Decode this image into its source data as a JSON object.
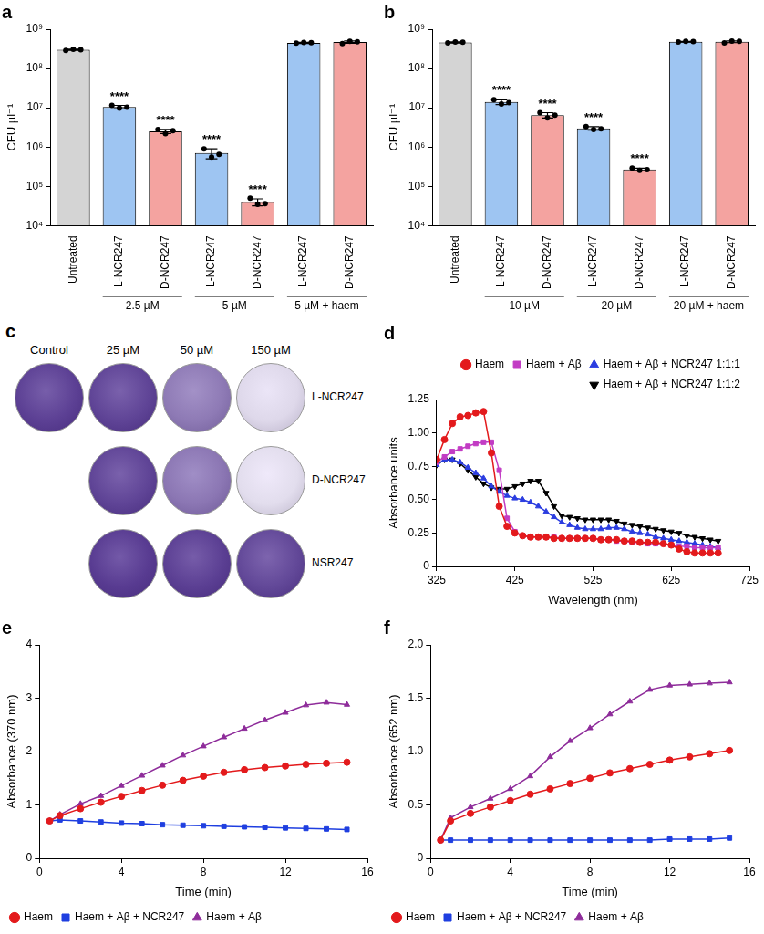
{
  "chart_data": [
    {
      "type": "bar",
      "title": "a",
      "categories": [
        "Untreated",
        "L-NCR247",
        "D-NCR247",
        "L-NCR247",
        "D-NCR247",
        "L-NCR247",
        "D-NCR247"
      ],
      "groups": [
        null,
        "2.5 µM",
        "2.5 µM",
        "5 µM",
        "5 µM",
        "5 µM + haem",
        "5 µM + haem"
      ],
      "values": [
        300000000,
        10500000,
        2500000,
        700000,
        40000,
        450000000,
        470000000
      ],
      "errors": [
        10000000,
        1000000,
        300000,
        200000,
        8000,
        15000000,
        30000000
      ],
      "replicates": [
        [
          290000000,
          310000000,
          300000000
        ],
        [
          11500000,
          9800000,
          10300000
        ],
        [
          2800000,
          2200000,
          2600000
        ],
        [
          900000,
          550000,
          650000
        ],
        [
          50000,
          35000,
          36000
        ],
        [
          440000000,
          460000000,
          455000000
        ],
        [
          430000000,
          490000000,
          480000000
        ]
      ],
      "annotations": [
        null,
        "****",
        "****",
        "****",
        "****",
        null,
        null
      ],
      "colors": [
        "#d4d4d4",
        "#9ec5f2",
        "#f4a3a0",
        "#9ec5f2",
        "#f4a3a0",
        "#9ec5f2",
        "#f4a3a0"
      ],
      "y_label": "CFU µl⁻¹",
      "log": "y",
      "ylim": [
        10000,
        1000000000
      ],
      "yticks": [
        {
          "value": 10000,
          "label": "10⁴"
        },
        {
          "value": 100000,
          "label": "10⁵"
        },
        {
          "value": 1000000,
          "label": "10⁶"
        },
        {
          "value": 10000000,
          "label": "10⁷"
        },
        {
          "value": 100000000,
          "label": "10⁸"
        },
        {
          "value": 1000000000,
          "label": "10⁹"
        }
      ],
      "grid": false
    },
    {
      "type": "bar",
      "title": "b",
      "categories": [
        "Untreated",
        "L-NCR247",
        "D-NCR247",
        "L-NCR247",
        "D-NCR247",
        "L-NCR247",
        "D-NCR247"
      ],
      "groups": [
        null,
        "10 µM",
        "10 µM",
        "20 µM",
        "20 µM",
        "20 µM + haem",
        "20 µM + haem"
      ],
      "values": [
        460000000,
        14000000,
        6500000,
        3000000,
        270000,
        480000000,
        480000000
      ],
      "errors": [
        15000000,
        2000000,
        1000000,
        300000,
        20000,
        10000000,
        25000000
      ],
      "replicates": [
        [
          450000000,
          470000000,
          465000000
        ],
        [
          16000000,
          12500000,
          13500000
        ],
        [
          7500000,
          5500000,
          6500000
        ],
        [
          3300000,
          2800000,
          2900000
        ],
        [
          290000,
          255000,
          265000
        ],
        [
          470000000,
          490000000,
          485000000
        ],
        [
          450000000,
          500000000,
          490000000
        ]
      ],
      "annotations": [
        null,
        "****",
        "****",
        "****",
        "****",
        null,
        null
      ],
      "colors": [
        "#d4d4d4",
        "#9ec5f2",
        "#f4a3a0",
        "#9ec5f2",
        "#f4a3a0",
        "#9ec5f2",
        "#f4a3a0"
      ],
      "y_label": "CFU µl⁻¹",
      "log": "y",
      "ylim": [
        10000,
        1000000000
      ],
      "yticks": [
        {
          "value": 10000,
          "label": "10⁴"
        },
        {
          "value": 100000,
          "label": "10⁵"
        },
        {
          "value": 1000000,
          "label": "10⁶"
        },
        {
          "value": 10000000,
          "label": "10⁷"
        },
        {
          "value": 100000000,
          "label": "10⁸"
        },
        {
          "value": 1000000000,
          "label": "10⁹"
        }
      ],
      "grid": false
    },
    {
      "type": "line",
      "title": "d",
      "x_label": "Wavelength (nm)",
      "y_label": "Absorbance units",
      "x": [
        325,
        335,
        345,
        355,
        365,
        375,
        385,
        395,
        405,
        415,
        425,
        435,
        445,
        455,
        465,
        475,
        485,
        495,
        505,
        515,
        525,
        535,
        545,
        555,
        565,
        575,
        585,
        595,
        605,
        615,
        625,
        635,
        645,
        655,
        665,
        675,
        685
      ],
      "series": [
        {
          "name": "Haem",
          "color": "#e31a1c",
          "marker": "circle",
          "line_style": "solid",
          "values": [
            0.8,
            0.95,
            1.07,
            1.12,
            1.13,
            1.15,
            1.16,
            0.85,
            0.45,
            0.3,
            0.25,
            0.23,
            0.22,
            0.22,
            0.22,
            0.21,
            0.21,
            0.21,
            0.21,
            0.21,
            0.21,
            0.2,
            0.2,
            0.2,
            0.19,
            0.19,
            0.18,
            0.18,
            0.18,
            0.17,
            0.16,
            0.13,
            0.11,
            0.1,
            0.1,
            0.1,
            0.1
          ]
        },
        {
          "name": "Haem + Aβ",
          "color": "#c23cc4",
          "marker": "square",
          "line_style": "solid",
          "values": [
            0.78,
            0.82,
            0.86,
            0.88,
            0.9,
            0.92,
            0.93,
            0.93,
            0.72,
            0.36,
            0.26,
            0.23,
            0.22,
            0.22,
            0.22,
            0.22,
            0.21,
            0.21,
            0.21,
            0.21,
            0.21,
            0.2,
            0.2,
            0.19,
            0.19,
            0.18,
            0.18,
            0.17,
            0.17,
            0.17,
            0.16,
            0.15,
            0.15,
            0.14,
            0.14,
            0.14,
            0.14
          ]
        },
        {
          "name": "Haem + Aβ + NCR247 1:1:1",
          "color": "#2b3de0",
          "marker": "triangle",
          "line_style": "solid",
          "values": [
            0.76,
            0.8,
            0.8,
            0.78,
            0.74,
            0.7,
            0.66,
            0.6,
            0.56,
            0.53,
            0.51,
            0.5,
            0.48,
            0.45,
            0.41,
            0.37,
            0.33,
            0.31,
            0.29,
            0.28,
            0.28,
            0.28,
            0.29,
            0.29,
            0.28,
            0.26,
            0.25,
            0.24,
            0.22,
            0.21,
            0.2,
            0.19,
            0.18,
            0.17,
            0.16,
            0.15,
            0.14
          ]
        },
        {
          "name": "Haem + Aβ + NCR247 1:1:2",
          "color": "#000000",
          "marker": "triangle-down",
          "line_style": "solid",
          "values": [
            0.76,
            0.8,
            0.8,
            0.77,
            0.72,
            0.67,
            0.62,
            0.59,
            0.58,
            0.58,
            0.6,
            0.62,
            0.64,
            0.64,
            0.55,
            0.45,
            0.38,
            0.37,
            0.36,
            0.35,
            0.35,
            0.35,
            0.35,
            0.34,
            0.32,
            0.31,
            0.3,
            0.29,
            0.28,
            0.27,
            0.26,
            0.25,
            0.23,
            0.22,
            0.21,
            0.2,
            0.19
          ]
        }
      ],
      "xlim": [
        325,
        725
      ],
      "xticks": [
        325,
        425,
        525,
        625,
        725
      ],
      "ylim": [
        0,
        1.25
      ],
      "yticks": [
        0,
        0.25,
        {
          "value": 0.5,
          "label": "0.50"
        },
        0.75,
        {
          "value": 1,
          "label": "1.00"
        },
        1.25
      ],
      "legend": "upper right",
      "grid": false
    },
    {
      "type": "line",
      "title": "e",
      "x_label": "Time (min)",
      "y_label": "Absorbance (370 nm)",
      "x": [
        0.5,
        1,
        2,
        3,
        4,
        5,
        6,
        7,
        8,
        9,
        10,
        11,
        12,
        13,
        14,
        15
      ],
      "series": [
        {
          "name": "Haem",
          "color": "#e31a1c",
          "marker": "circle",
          "line_style": "solid",
          "values": [
            0.7,
            0.8,
            0.93,
            1.05,
            1.16,
            1.27,
            1.37,
            1.46,
            1.54,
            1.61,
            1.66,
            1.7,
            1.73,
            1.76,
            1.78,
            1.8
          ]
        },
        {
          "name": "Haem + Aβ + NCR247",
          "color": "#1f3fe0",
          "marker": "square",
          "line_style": "solid",
          "values": [
            0.7,
            0.72,
            0.7,
            0.68,
            0.66,
            0.65,
            0.63,
            0.62,
            0.61,
            0.6,
            0.59,
            0.58,
            0.57,
            0.56,
            0.55,
            0.54
          ]
        },
        {
          "name": "Haem + Aβ",
          "color": "#8e2c9a",
          "marker": "triangle",
          "line_style": "solid",
          "values": [
            0.7,
            0.82,
            1.02,
            1.17,
            1.36,
            1.55,
            1.74,
            1.93,
            2.1,
            2.27,
            2.43,
            2.59,
            2.73,
            2.87,
            2.92,
            2.88
          ]
        }
      ],
      "xlim": [
        0,
        16
      ],
      "xticks": [
        0,
        4,
        8,
        12,
        16
      ],
      "ylim": [
        0,
        4
      ],
      "yticks": [
        0,
        1,
        2,
        3,
        4
      ],
      "legend": "bottom",
      "grid": false
    },
    {
      "type": "line",
      "title": "f",
      "x_label": "Time (min)",
      "y_label": "Absorbance (652 nm)",
      "x": [
        0.5,
        1,
        2,
        3,
        4,
        5,
        6,
        7,
        8,
        9,
        10,
        11,
        12,
        13,
        14,
        15
      ],
      "series": [
        {
          "name": "Haem",
          "color": "#e31a1c",
          "marker": "circle",
          "line_style": "solid",
          "values": [
            0.17,
            0.35,
            0.42,
            0.48,
            0.54,
            0.6,
            0.65,
            0.7,
            0.75,
            0.8,
            0.84,
            0.88,
            0.92,
            0.95,
            0.98,
            1.01
          ]
        },
        {
          "name": "Haem + Aβ + NCR247",
          "color": "#1f3fe0",
          "marker": "square",
          "line_style": "solid",
          "values": [
            0.17,
            0.17,
            0.17,
            0.17,
            0.17,
            0.17,
            0.17,
            0.17,
            0.17,
            0.17,
            0.17,
            0.17,
            0.18,
            0.18,
            0.18,
            0.19
          ]
        },
        {
          "name": "Haem + Aβ",
          "color": "#8e2c9a",
          "marker": "triangle",
          "line_style": "solid",
          "values": [
            0.17,
            0.38,
            0.48,
            0.56,
            0.65,
            0.77,
            0.95,
            1.1,
            1.22,
            1.35,
            1.47,
            1.58,
            1.62,
            1.63,
            1.64,
            1.65
          ]
        }
      ],
      "xlim": [
        0,
        16
      ],
      "xticks": [
        0,
        4,
        8,
        12,
        16
      ],
      "ylim": [
        0,
        2
      ],
      "yticks": [
        0,
        0.5,
        {
          "value": 1,
          "label": "1.0"
        },
        1.5,
        {
          "value": 2,
          "label": "2.0"
        }
      ],
      "legend": "bottom",
      "grid": false
    }
  ],
  "wells_panel": {
    "title": "c",
    "columns": [
      "Control",
      "25 µM",
      "50 µM",
      "150 µM"
    ],
    "rows": [
      {
        "label": "L-NCR247",
        "wells": [
          true,
          true,
          true,
          true
        ]
      },
      {
        "label": "D-NCR247",
        "wells": [
          false,
          true,
          true,
          true
        ]
      },
      {
        "label": "NSR247",
        "wells": [
          false,
          true,
          true,
          true
        ]
      }
    ]
  }
}
